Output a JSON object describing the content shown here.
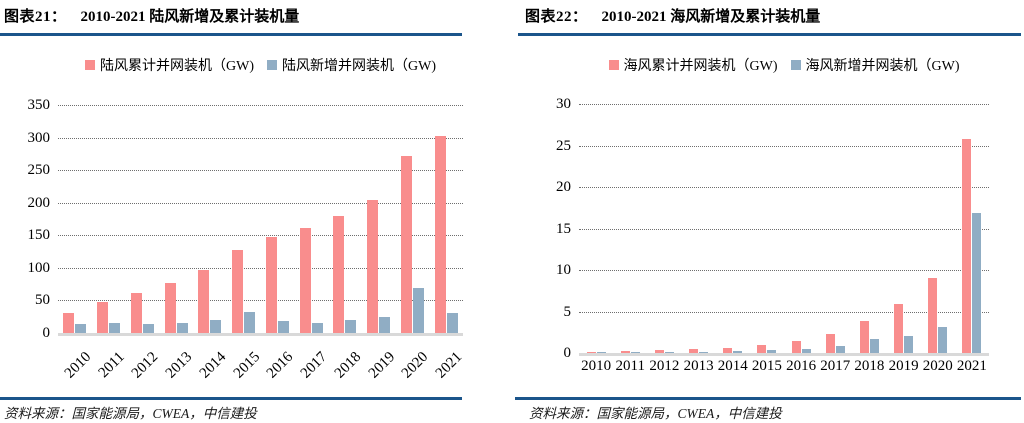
{
  "panels": [
    {
      "figure_label": "图表21：",
      "title": "2010-2021 陆风新增及累计装机量",
      "source": "资料来源：国家能源局，CWEA，中信建投"
    },
    {
      "figure_label": "图表22：",
      "title": "2010-2021 海风新增及累计装机量",
      "source": "资料来源：国家能源局，CWEA，中信建投"
    }
  ],
  "colors": {
    "cumulative_bar": "#F98D8D",
    "new_bar": "#90ADC4",
    "rule_navy": "#1B558B",
    "gridline": "#6e6e6e",
    "axis_baseline": "#D9D9D9"
  },
  "chart_data": [
    {
      "type": "bar",
      "title": "2010-2021 陆风新增及累计装机量",
      "categories": [
        "2010",
        "2011",
        "2012",
        "2013",
        "2014",
        "2015",
        "2016",
        "2017",
        "2018",
        "2019",
        "2020",
        "2021"
      ],
      "series": [
        {
          "name": "陆风累计并网装机（GW)",
          "color": "#F98D8D",
          "values": [
            31,
            47,
            61,
            76,
            96,
            128,
            147,
            161,
            180,
            204,
            272,
            302
          ]
        },
        {
          "name": "陆风新增并网装机（GW)",
          "color": "#90ADC4",
          "values": [
            14,
            16,
            14,
            15,
            20,
            33,
            19,
            15,
            20,
            24,
            69,
            31
          ]
        }
      ],
      "xlabel": "",
      "ylabel": "",
      "ylim": [
        0,
        350
      ],
      "ytick_step": 50,
      "grid": "horizontal-dotted",
      "legend_position": "top",
      "x_label_rotation": -45
    },
    {
      "type": "bar",
      "title": "2010-2021 海风新增及累计装机量",
      "categories": [
        "2010",
        "2011",
        "2012",
        "2013",
        "2014",
        "2015",
        "2016",
        "2017",
        "2018",
        "2019",
        "2020",
        "2021"
      ],
      "series": [
        {
          "name": "海风累计并网装机（GW)",
          "color": "#F98D8D",
          "values": [
            0.15,
            0.25,
            0.4,
            0.45,
            0.65,
            1.0,
            1.5,
            2.3,
            3.9,
            5.9,
            9.0,
            25.8
          ]
        },
        {
          "name": "海风新增并网装机（GW)",
          "color": "#90ADC4",
          "values": [
            0.1,
            0.1,
            0.15,
            0.15,
            0.2,
            0.4,
            0.5,
            0.9,
            1.7,
            2.1,
            3.1,
            16.9
          ]
        }
      ],
      "xlabel": "",
      "ylabel": "",
      "ylim": [
        0,
        30
      ],
      "ytick_step": 5,
      "grid": "horizontal-dotted",
      "legend_position": "top",
      "x_label_rotation": 0
    }
  ]
}
